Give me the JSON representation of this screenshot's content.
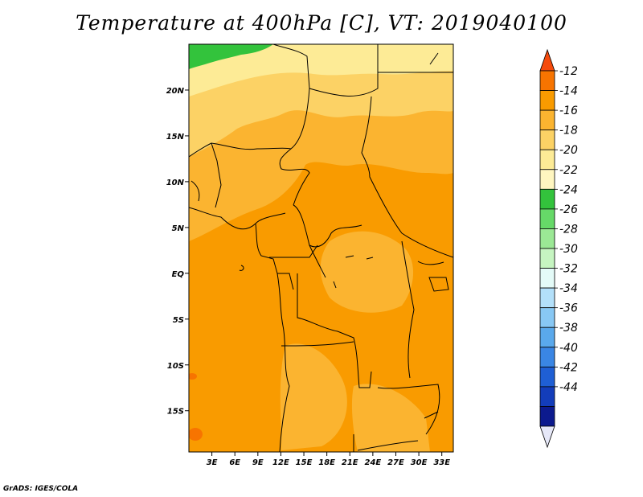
{
  "title": "Temperature at 400hPa [C], VT: 2019040100",
  "credit": "GrADS: IGES/COLA",
  "map": {
    "lat_range": [
      -19.5,
      25
    ],
    "lon_range": [
      0,
      34.5
    ],
    "lat_ticks": [
      {
        "value": 20,
        "label": "20N"
      },
      {
        "value": 15,
        "label": "15N"
      },
      {
        "value": 10,
        "label": "10N"
      },
      {
        "value": 5,
        "label": "5N"
      },
      {
        "value": 0,
        "label": "EQ"
      },
      {
        "value": -5,
        "label": "5S"
      },
      {
        "value": -10,
        "label": "10S"
      },
      {
        "value": -15,
        "label": "15S"
      }
    ],
    "lon_ticks": [
      {
        "value": 3,
        "label": "3E"
      },
      {
        "value": 6,
        "label": "6E"
      },
      {
        "value": 9,
        "label": "9E"
      },
      {
        "value": 12,
        "label": "12E"
      },
      {
        "value": 15,
        "label": "15E"
      },
      {
        "value": 18,
        "label": "18E"
      },
      {
        "value": 21,
        "label": "21E"
      },
      {
        "value": 24,
        "label": "24E"
      },
      {
        "value": 27,
        "label": "27E"
      },
      {
        "value": 30,
        "label": "30E"
      },
      {
        "value": 33,
        "label": "33E"
      }
    ]
  },
  "colorbar": {
    "labels": [
      "-12",
      "-14",
      "-16",
      "-18",
      "-20",
      "-22",
      "-24",
      "-26",
      "-28",
      "-30",
      "-32",
      "-34",
      "-36",
      "-38",
      "-40",
      "-42",
      "-44"
    ],
    "colors": [
      "#f54a0c",
      "#f77400",
      "#f99b00",
      "#fbb430",
      "#fcd265",
      "#fdeb96",
      "#fff6c0",
      "#33c33c",
      "#66d968",
      "#9be895",
      "#c6f5c1",
      "#e4fbf8",
      "#b3e0fa",
      "#88c8f4",
      "#5aa9ec",
      "#3a86e4",
      "#1f5fd4",
      "#133dba",
      "#0c1a8e",
      "#e6e8f8"
    ]
  }
}
